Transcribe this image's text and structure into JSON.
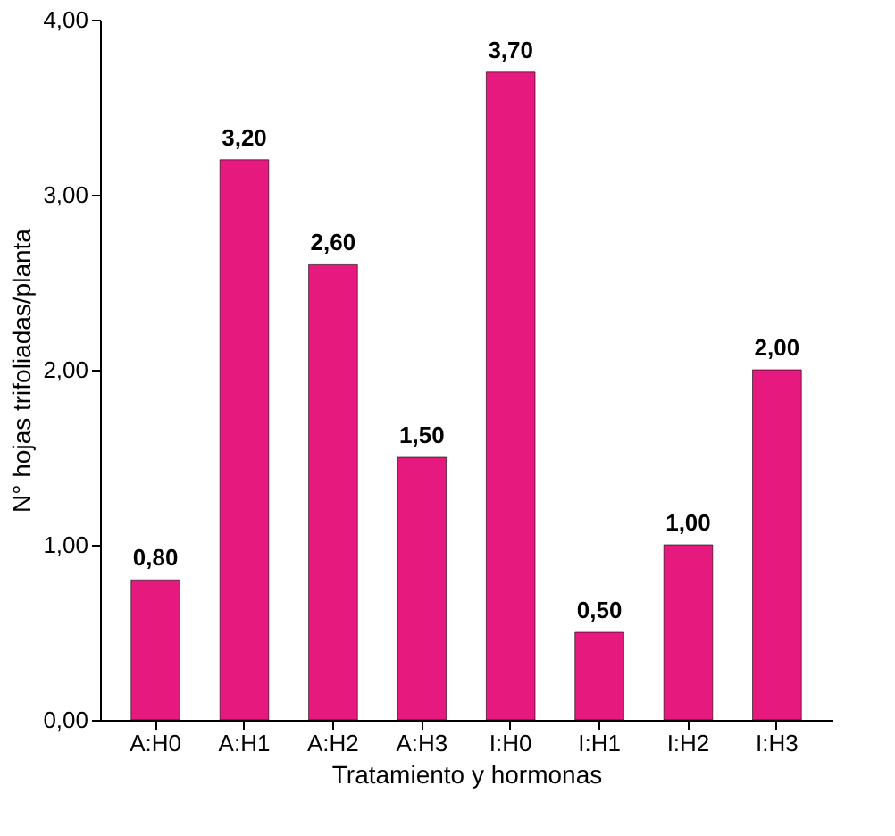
{
  "chart_data": {
    "type": "bar",
    "xlabel": "Tratamiento y hormonas",
    "ylabel": "N° hojas trifoliadas/planta",
    "categories": [
      "A:H0",
      "A:H1",
      "A:H2",
      "A:H3",
      "I:H0",
      "I:H1",
      "I:H2",
      "I:H3"
    ],
    "values": [
      0.8,
      3.2,
      2.6,
      1.5,
      3.7,
      0.5,
      1.0,
      2.0
    ],
    "value_labels": [
      "0,80",
      "3,20",
      "2,60",
      "1,50",
      "3,70",
      "0,50",
      "1,00",
      "2,00"
    ],
    "color": "#e6197f",
    "ylim": [
      0,
      4
    ],
    "yticks": [
      {
        "value": 0,
        "label": "0,00"
      },
      {
        "value": 1,
        "label": "1,00"
      },
      {
        "value": 2,
        "label": "2,00"
      },
      {
        "value": 3,
        "label": "3,00"
      },
      {
        "value": 4,
        "label": "4,00"
      }
    ],
    "grid": false
  }
}
